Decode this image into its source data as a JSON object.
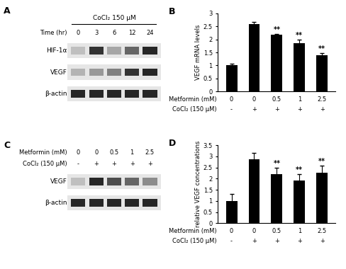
{
  "chart_data": [
    {
      "type": "bar",
      "title": "B",
      "categories": [
        null,
        null,
        null,
        null,
        null
      ],
      "values": [
        1.0,
        2.6,
        2.18,
        1.85,
        1.4
      ],
      "errors": [
        0.08,
        0.08,
        0.03,
        0.15,
        0.08
      ],
      "significance": [
        null,
        null,
        "**",
        "**",
        "**"
      ],
      "color": "#000000",
      "ylabel": "VEGF mRNA levels",
      "ylim": [
        0,
        3
      ],
      "yticks": [
        0,
        0.5,
        1,
        1.5,
        2,
        2.5,
        3
      ],
      "x_rows": [
        {
          "label": "Metformin (mM)",
          "values": [
            "0",
            "0",
            "0.5",
            "1",
            "2.5"
          ]
        },
        {
          "label": "CoCl₂ (150 μM)",
          "values": [
            "-",
            "+",
            "+",
            "+",
            "+"
          ]
        }
      ]
    },
    {
      "type": "bar",
      "title": "D",
      "categories": [
        null,
        null,
        null,
        null,
        null
      ],
      "values": [
        1.0,
        2.88,
        2.2,
        1.92,
        2.28
      ],
      "errors": [
        0.3,
        0.28,
        0.3,
        0.3,
        0.3
      ],
      "significance": [
        null,
        null,
        "**",
        "**",
        "**"
      ],
      "color": "#000000",
      "ylabel": "relative VEGF concentrations",
      "ylim": [
        0,
        3.5
      ],
      "yticks": [
        0,
        0.5,
        1,
        1.5,
        2,
        2.5,
        3,
        3.5
      ],
      "x_rows": [
        {
          "label": "Metformin (mM)",
          "values": [
            "0",
            "0",
            "0.5",
            "1",
            "2.5"
          ]
        },
        {
          "label": "CoCl₂ (150 μM)",
          "values": [
            "-",
            "+",
            "+",
            "+",
            "+"
          ]
        }
      ]
    }
  ],
  "blots": [
    {
      "title": "A",
      "header": "CoCl₂ 150 μM",
      "lane_rows": [
        {
          "label": "Time (hr)",
          "values": [
            "0",
            "3",
            "6",
            "12",
            "24"
          ]
        }
      ],
      "bands": [
        {
          "label": "HIF-1α",
          "intensity": [
            0.25,
            0.8,
            0.35,
            0.6,
            0.85
          ]
        },
        {
          "label": "VEGF",
          "intensity": [
            0.3,
            0.4,
            0.5,
            0.8,
            0.85
          ]
        },
        {
          "label": "β-actin",
          "intensity": [
            0.85,
            0.85,
            0.85,
            0.85,
            0.85
          ]
        }
      ]
    },
    {
      "title": "C",
      "lane_rows": [
        {
          "label": "Metformin (mM)",
          "values": [
            "0",
            "0",
            "0.5",
            "1",
            "2.5"
          ]
        },
        {
          "label": "CoCl₂ (150 μM)",
          "values": [
            "-",
            "+",
            "+",
            "+",
            "+"
          ]
        }
      ],
      "bands": [
        {
          "label": "VEGF",
          "intensity": [
            0.25,
            0.85,
            0.7,
            0.6,
            0.45
          ]
        },
        {
          "label": "β-actin",
          "intensity": [
            0.85,
            0.85,
            0.85,
            0.85,
            0.85
          ]
        }
      ]
    }
  ]
}
